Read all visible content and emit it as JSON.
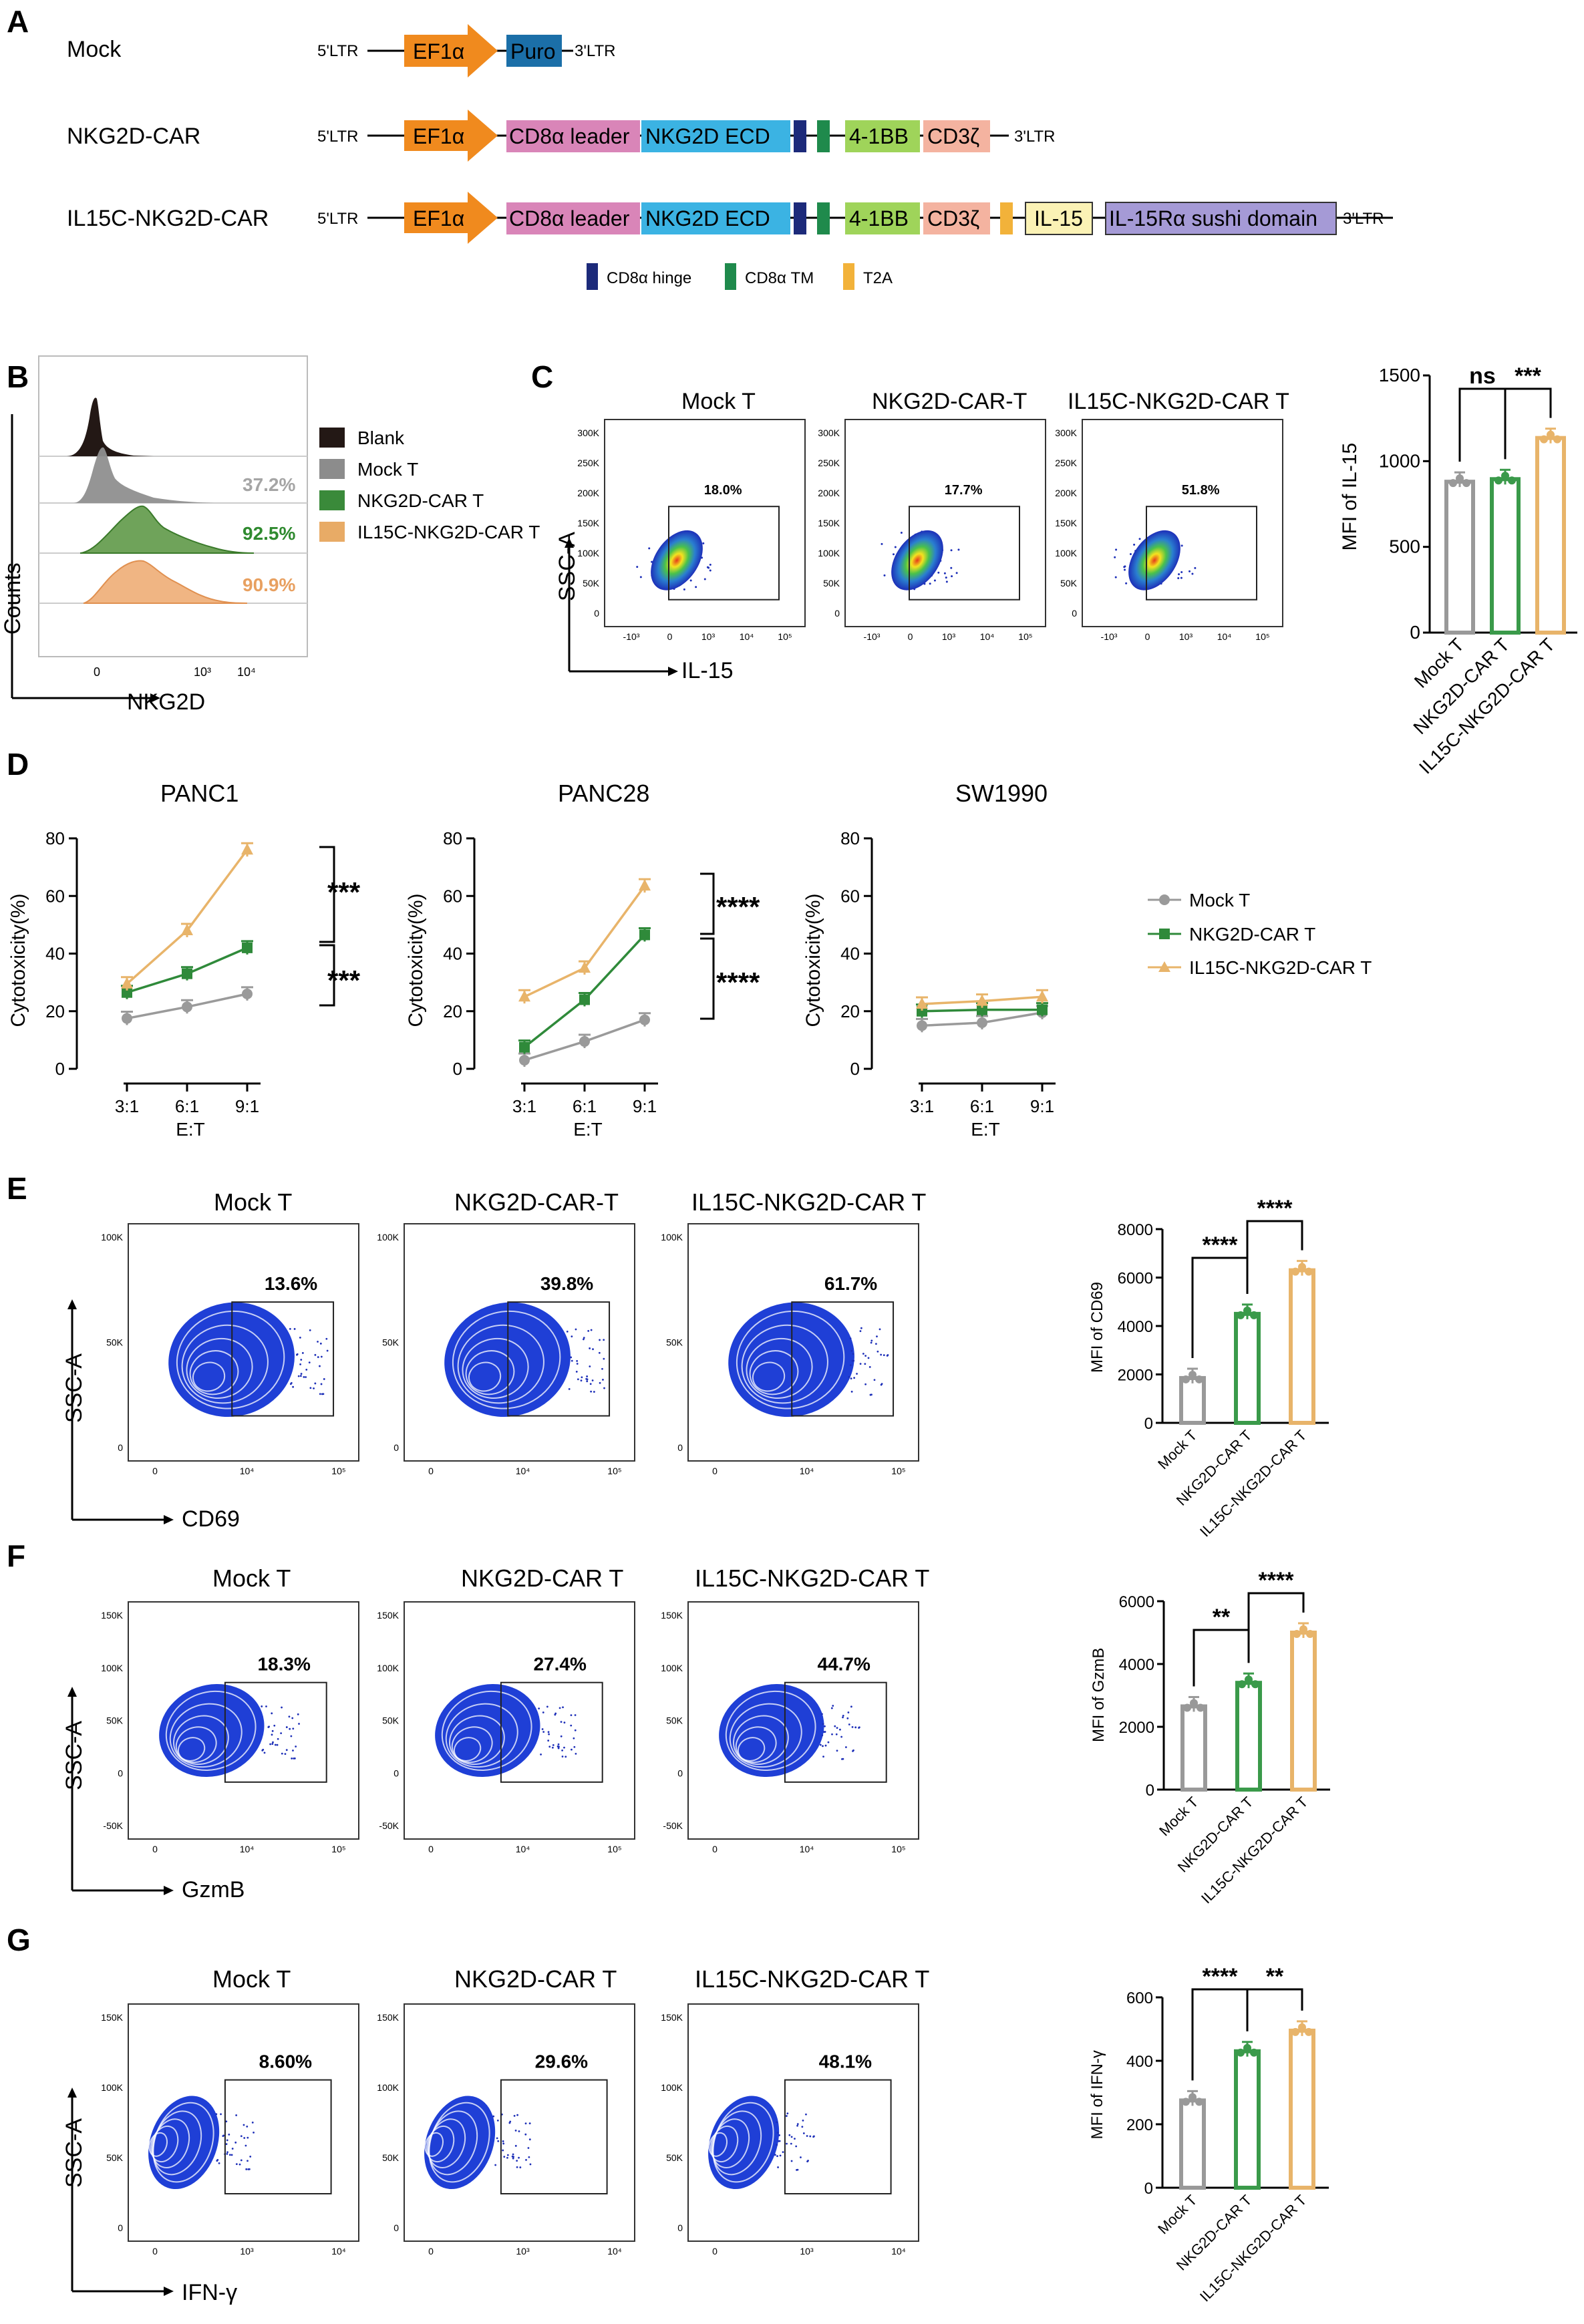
{
  "panels": {
    "A": {
      "letter": "A",
      "ltr5": "5'LTR",
      "ltr3": "3'LTR",
      "constructs": [
        {
          "name": "Mock",
          "segments": [
            "EF1α",
            "Puro"
          ]
        },
        {
          "name": "NKG2D-CAR",
          "segments": [
            "EF1α",
            "CD8α leader",
            "NKG2D ECD",
            "",
            "",
            "4-1BB",
            "CD3ζ"
          ]
        },
        {
          "name": "IL15C-NKG2D-CAR",
          "segments": [
            "EF1α",
            "CD8α leader",
            "NKG2D ECD",
            "",
            "",
            "4-1BB",
            "CD3ζ",
            "",
            "IL-15",
            "IL-15Rα sushi domain"
          ]
        }
      ],
      "legend": [
        {
          "label": "CD8α hinge",
          "color": "#1c2a7a"
        },
        {
          "label": "CD8α TM",
          "color": "#1f8a4c"
        },
        {
          "label": "T2A",
          "color": "#f2b23a"
        }
      ],
      "colors": {
        "ef1a": "#f08a1e",
        "puro": "#1b6fa8",
        "leader": "#d985b8",
        "ecd": "#3bb3e3",
        "bb": "#9fd45a",
        "cd3z": "#f4b3a0",
        "il15": "#fbf2b5",
        "sushi": "#a59ad6"
      }
    },
    "B": {
      "letter": "B",
      "xlabel": "NKG2D",
      "ylabel": "Counts",
      "xticks": [
        "0",
        "10³",
        "10⁴"
      ],
      "legend": [
        {
          "label": "Blank",
          "color": "#231815"
        },
        {
          "label": "Mock T",
          "color": "#8c8c8c"
        },
        {
          "label": "NKG2D-CAR T",
          "color": "#3a8a3a"
        },
        {
          "label": "IL15C-NKG2D-CAR T",
          "color": "#e8ab66"
        }
      ],
      "percents": [
        {
          "label": "37.2%",
          "color": "#a5a5a5"
        },
        {
          "label": "92.5%",
          "color": "#2f8a2f"
        },
        {
          "label": "90.9%",
          "color": "#e8a060"
        }
      ]
    },
    "C": {
      "letter": "C",
      "xlabel": "IL-15",
      "ylabel": "SSC-A",
      "plots": [
        {
          "title": "Mock T",
          "pct": "18.0%"
        },
        {
          "title": "NKG2D-CAR-T",
          "pct": "17.7%"
        },
        {
          "title": "IL15C-NKG2D-CAR T",
          "pct": "51.8%"
        }
      ],
      "yticks": [
        "300K",
        "250K",
        "200K",
        "150K",
        "100K",
        "50K",
        "0"
      ],
      "xticks": [
        "-10³",
        "0",
        "10³",
        "10⁴",
        "10⁵"
      ]
    },
    "D": {
      "letter": "D",
      "legend": [
        "Mock T",
        "NKG2D-CAR T",
        "IL15C-NKG2D-CAR T"
      ],
      "sig_panc1": [
        "***",
        "***"
      ],
      "sig_panc28": [
        "****",
        "****"
      ]
    },
    "E": {
      "letter": "E",
      "xlabel": "CD69",
      "ylabel": "SSC-A",
      "plots": [
        {
          "title": "Mock T",
          "pct": "13.6%"
        },
        {
          "title": "NKG2D-CAR-T",
          "pct": "39.8%"
        },
        {
          "title": "IL15C-NKG2D-CAR T",
          "pct": "61.7%"
        }
      ],
      "yticks": [
        "100K",
        "50K",
        "0"
      ],
      "xticks": [
        "0",
        "10⁴",
        "10⁵"
      ]
    },
    "F": {
      "letter": "F",
      "xlabel": "GzmB",
      "ylabel": "SSC-A",
      "plots": [
        {
          "title": "Mock T",
          "pct": "18.3%"
        },
        {
          "title": "NKG2D-CAR T",
          "pct": "27.4%"
        },
        {
          "title": "IL15C-NKG2D-CAR T",
          "pct": "44.7%"
        }
      ],
      "yticks": [
        "150K",
        "100K",
        "50K",
        "0",
        "-50K"
      ],
      "xticks": [
        "0",
        "10⁴",
        "10⁵"
      ]
    },
    "G": {
      "letter": "G",
      "xlabel": "IFN-γ",
      "ylabel": "SSC-A",
      "plots": [
        {
          "title": "Mock T",
          "pct": "8.60%"
        },
        {
          "title": "NKG2D-CAR T",
          "pct": "29.6%"
        },
        {
          "title": "IL15C-NKG2D-CAR T",
          "pct": "48.1%"
        }
      ],
      "yticks": [
        "150K",
        "100K",
        "50K",
        "0"
      ],
      "xticks": [
        "0",
        "10³",
        "10⁴"
      ]
    }
  },
  "chart_data": [
    {
      "id": "mfi_il15",
      "type": "bar",
      "title": "",
      "ylabel": "MFI of IL-15",
      "xlabel": "",
      "categories": [
        "Mock T",
        "NKG2D-CAR T",
        "IL15C-NKG2D-CAR T"
      ],
      "values": [
        880,
        895,
        1135
      ],
      "ylim": [
        0,
        1500
      ],
      "yticks": [
        0,
        500,
        1000,
        1500
      ],
      "tick_labels": [
        "0",
        "500",
        "1000",
        "1500"
      ],
      "colors": [
        "#999999",
        "#3a9a4a",
        "#e8b46a"
      ],
      "significance": [
        {
          "from": 0,
          "to": 1,
          "label": "ns"
        },
        {
          "from": 1,
          "to": 2,
          "label": "***"
        }
      ]
    },
    {
      "id": "panc1",
      "type": "line",
      "title": "PANC1",
      "xlabel": "E:T",
      "ylabel": "Cytotoxicity(%)",
      "categories": [
        "3:1",
        "6:1",
        "9:1"
      ],
      "ylim": [
        0,
        80
      ],
      "yticks": [
        0,
        20,
        40,
        60,
        80
      ],
      "tick_labels": [
        "0",
        "20",
        "40",
        "60",
        "80"
      ],
      "series": [
        {
          "name": "Mock T",
          "values": [
            17.5,
            21.5,
            26
          ],
          "color": "#9a9a9a",
          "marker": "circle"
        },
        {
          "name": "NKG2D-CAR T",
          "values": [
            26.5,
            33,
            42
          ],
          "color": "#2f8a3a",
          "marker": "square"
        },
        {
          "name": "IL15C-NKG2D-CAR T",
          "values": [
            29.5,
            48,
            76
          ],
          "color": "#e8b46a",
          "marker": "triangle"
        }
      ]
    },
    {
      "id": "panc28",
      "type": "line",
      "title": "PANC28",
      "xlabel": "E:T",
      "ylabel": "Cytotoxicity(%)",
      "categories": [
        "3:1",
        "6:1",
        "9:1"
      ],
      "ylim": [
        0,
        80
      ],
      "yticks": [
        0,
        20,
        40,
        60,
        80
      ],
      "tick_labels": [
        "0",
        "20",
        "40",
        "60",
        "80"
      ],
      "series": [
        {
          "name": "Mock T",
          "values": [
            3,
            9.5,
            17
          ],
          "color": "#9a9a9a",
          "marker": "circle"
        },
        {
          "name": "NKG2D-CAR T",
          "values": [
            7.5,
            24,
            46.5
          ],
          "color": "#2f8a3a",
          "marker": "square"
        },
        {
          "name": "IL15C-NKG2D-CAR T",
          "values": [
            25,
            35,
            63.5
          ],
          "color": "#e8b46a",
          "marker": "triangle"
        }
      ]
    },
    {
      "id": "sw1990",
      "type": "line",
      "title": "SW1990",
      "xlabel": "E:T",
      "ylabel": "Cytotoxicity(%)",
      "categories": [
        "3:1",
        "6:1",
        "9:1"
      ],
      "ylim": [
        0,
        80
      ],
      "yticks": [
        0,
        20,
        40,
        60,
        80
      ],
      "tick_labels": [
        "0",
        "20",
        "40",
        "60",
        "80"
      ],
      "series": [
        {
          "name": "Mock T",
          "values": [
            15,
            16,
            19.5
          ],
          "color": "#9a9a9a",
          "marker": "circle"
        },
        {
          "name": "NKG2D-CAR T",
          "values": [
            20,
            20.5,
            20.5
          ],
          "color": "#2f8a3a",
          "marker": "square"
        },
        {
          "name": "IL15C-NKG2D-CAR T",
          "values": [
            22.5,
            23.5,
            25
          ],
          "color": "#e8b46a",
          "marker": "triangle"
        }
      ]
    },
    {
      "id": "mfi_cd69",
      "type": "bar",
      "title": "",
      "ylabel": "MFI of CD69",
      "xlabel": "",
      "categories": [
        "Mock T",
        "NKG2D-CAR T",
        "IL15C-NKG2D-CAR T"
      ],
      "values": [
        1850,
        4500,
        6300
      ],
      "ylim": [
        0,
        8000
      ],
      "yticks": [
        0,
        2000,
        4000,
        6000,
        8000
      ],
      "tick_labels": [
        "0",
        "2000",
        "4000",
        "6000",
        "8000"
      ],
      "colors": [
        "#999999",
        "#3a9a4a",
        "#e8b46a"
      ],
      "significance": [
        {
          "from": 0,
          "to": 1,
          "label": "****"
        },
        {
          "from": 1,
          "to": 2,
          "label": "****"
        }
      ]
    },
    {
      "id": "mfi_gzmb",
      "type": "bar",
      "title": "",
      "ylabel": "MFI of GzmB",
      "xlabel": "",
      "categories": [
        "Mock T",
        "NKG2D-CAR T",
        "IL15C-NKG2D-CAR T"
      ],
      "values": [
        2650,
        3400,
        5000
      ],
      "ylim": [
        0,
        6000
      ],
      "yticks": [
        0,
        2000,
        4000,
        6000
      ],
      "tick_labels": [
        "0",
        "2000",
        "4000",
        "6000"
      ],
      "colors": [
        "#999999",
        "#3a9a4a",
        "#e8b46a"
      ],
      "significance": [
        {
          "from": 0,
          "to": 1,
          "label": "**"
        },
        {
          "from": 1,
          "to": 2,
          "label": "****"
        }
      ]
    },
    {
      "id": "mfi_ifng",
      "type": "bar",
      "title": "",
      "ylabel": "MFI of IFN-γ",
      "xlabel": "",
      "categories": [
        "Mock T",
        "NKG2D-CAR T",
        "IL15C-NKG2D-CAR T"
      ],
      "values": [
        275,
        430,
        495
      ],
      "ylim": [
        0,
        600
      ],
      "yticks": [
        0,
        200,
        400,
        600
      ],
      "tick_labels": [
        "0",
        "200",
        "400",
        "600"
      ],
      "colors": [
        "#999999",
        "#3a9a4a",
        "#e8b46a"
      ],
      "significance": [
        {
          "from": 0,
          "to": 1,
          "label": "****"
        },
        {
          "from": 1,
          "to": 2,
          "label": "**"
        }
      ]
    }
  ]
}
